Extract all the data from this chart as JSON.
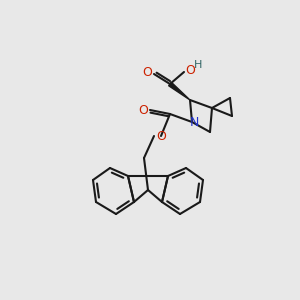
{
  "bg_color": "#e8e8e8",
  "bond_color": "#1a1a1a",
  "O_color": "#cc2200",
  "N_color": "#2233cc",
  "H_color": "#336666",
  "figsize": [
    3.0,
    3.0
  ],
  "dpi": 100,
  "xlim": [
    0,
    300
  ],
  "ylim": [
    0,
    300
  ]
}
